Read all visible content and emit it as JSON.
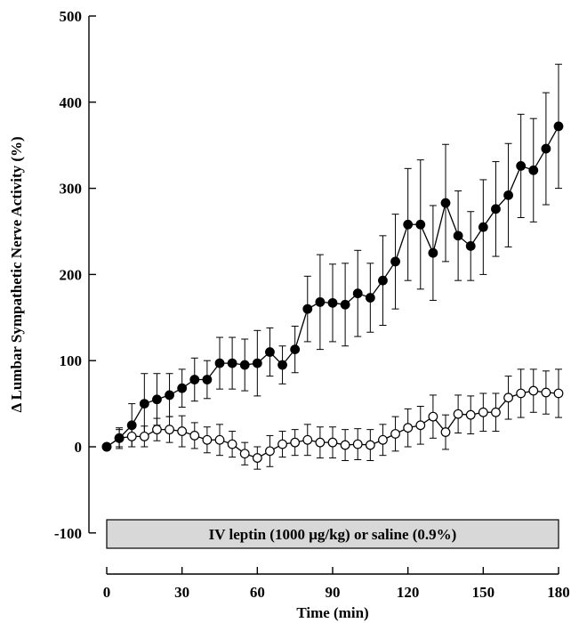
{
  "chart_data": {
    "type": "line",
    "title": "",
    "xlabel": "Time (min)",
    "ylabel": "Δ Lumbar Sympathetic Nerve Activity (%)",
    "xlim": [
      0,
      180
    ],
    "ylim": [
      -100,
      500
    ],
    "x_ticks": [
      0,
      30,
      60,
      90,
      120,
      150,
      180
    ],
    "y_ticks": [
      -100,
      0,
      100,
      200,
      300,
      400,
      500
    ],
    "x_tick_labels": [
      "0",
      "30",
      "60",
      "90",
      "120",
      "150",
      "180"
    ],
    "y_tick_labels": [
      "-100",
      "0",
      "100",
      "200",
      "300",
      "400",
      "500"
    ],
    "grid": false,
    "legend": "none",
    "annotation": "IV leptin (1000 μg/kg) or saline (0.9%)",
    "annotation_range": [
      0,
      180
    ],
    "series": [
      {
        "marker": "filled-circle",
        "color": "#000000",
        "x": [
          0,
          5,
          10,
          15,
          20,
          25,
          30,
          35,
          40,
          45,
          50,
          55,
          60,
          65,
          70,
          75,
          80,
          85,
          90,
          95,
          100,
          105,
          110,
          115,
          120,
          125,
          130,
          135,
          140,
          145,
          150,
          155,
          160,
          165,
          170,
          175,
          180
        ],
        "y": [
          0,
          10,
          25,
          50,
          55,
          60,
          68,
          78,
          78,
          97,
          97,
          95,
          97,
          110,
          95,
          113,
          160,
          168,
          167,
          165,
          178,
          173,
          193,
          215,
          258,
          258,
          225,
          283,
          245,
          233,
          255,
          276,
          292,
          326,
          321,
          346,
          372
        ],
        "err": [
          0,
          12,
          25,
          35,
          30,
          25,
          22,
          25,
          22,
          30,
          30,
          30,
          38,
          28,
          22,
          27,
          38,
          55,
          45,
          48,
          50,
          40,
          52,
          55,
          65,
          75,
          55,
          68,
          52,
          40,
          55,
          55,
          60,
          60,
          60,
          65,
          72
        ]
      },
      {
        "marker": "open-circle",
        "color": "#000000",
        "x": [
          0,
          5,
          10,
          15,
          20,
          25,
          30,
          35,
          40,
          45,
          50,
          55,
          60,
          65,
          70,
          75,
          80,
          85,
          90,
          95,
          100,
          105,
          110,
          115,
          120,
          125,
          130,
          135,
          140,
          145,
          150,
          155,
          160,
          165,
          170,
          175,
          180
        ],
        "y": [
          0,
          10,
          12,
          12,
          20,
          20,
          18,
          13,
          8,
          8,
          3,
          -8,
          -13,
          -5,
          3,
          5,
          8,
          5,
          5,
          2,
          3,
          2,
          8,
          15,
          22,
          25,
          35,
          17,
          38,
          37,
          40,
          40,
          57,
          62,
          65,
          63,
          62
        ],
        "err": [
          0,
          10,
          12,
          12,
          13,
          15,
          18,
          15,
          15,
          18,
          15,
          13,
          13,
          18,
          15,
          15,
          18,
          18,
          18,
          18,
          18,
          18,
          18,
          20,
          22,
          22,
          25,
          20,
          22,
          22,
          22,
          22,
          25,
          28,
          25,
          25,
          28
        ]
      }
    ]
  }
}
